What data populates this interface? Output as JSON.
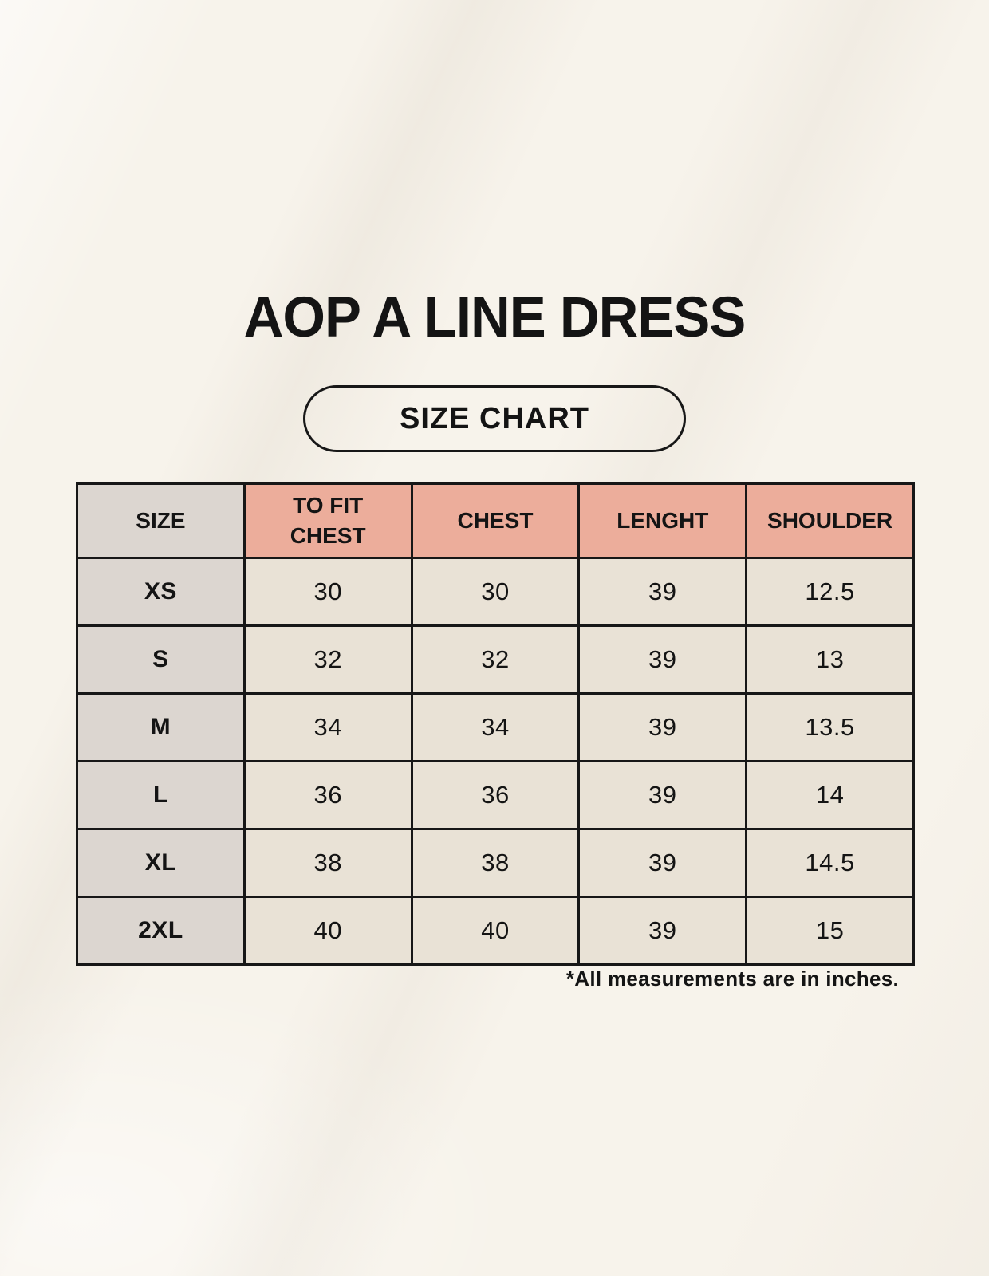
{
  "page": {
    "title": "AOP A LINE DRESS",
    "badge_label": "SIZE CHART",
    "footnote": "*All measurements are in inches."
  },
  "table": {
    "columns": [
      "SIZE",
      "TO FIT\nCHEST",
      "CHEST",
      "LENGHT",
      "SHOULDER"
    ],
    "rows": [
      {
        "size": "XS",
        "values": [
          "30",
          "30",
          "39",
          "12.5"
        ]
      },
      {
        "size": "S",
        "values": [
          "32",
          "32",
          "39",
          "13"
        ]
      },
      {
        "size": "M",
        "values": [
          "34",
          "34",
          "39",
          "13.5"
        ]
      },
      {
        "size": "L",
        "values": [
          "36",
          "36",
          "39",
          "14"
        ]
      },
      {
        "size": "XL",
        "values": [
          "38",
          "38",
          "39",
          "14.5"
        ]
      },
      {
        "size": "2XL",
        "values": [
          "40",
          "40",
          "39",
          "15"
        ]
      }
    ],
    "units_note": "inches"
  },
  "colors": {
    "background": "#F7F3EB",
    "header_pink": "#ECAD9B",
    "cell_cream": "#E9E2D6",
    "label_gray": "#DCD6D0",
    "line_black": "#171717",
    "text_black": "#141414"
  }
}
